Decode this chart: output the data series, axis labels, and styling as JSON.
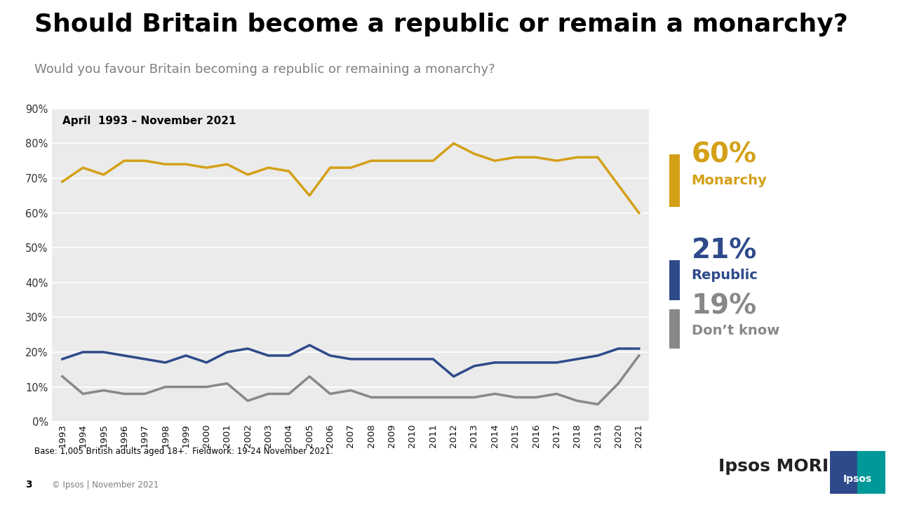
{
  "title": "Should Britain become a republic or remain a monarchy?",
  "subtitle": "Would you favour Britain becoming a republic or remaining a monarchy?",
  "date_range_label": "April  1993 – November 2021",
  "monarchy_color": "#D4A017",
  "republic_color": "#2E4A8A",
  "dontknow_color": "#888888",
  "background_color": "#EBEBEB",
  "legend": [
    {
      "pct": "60%",
      "label": "Monarchy",
      "color": "#D4A017"
    },
    {
      "pct": "21%",
      "label": "Republic",
      "color": "#2E4A8A"
    },
    {
      "pct": "19%",
      "label": "Don’t know",
      "color": "#888888"
    }
  ],
  "base_note": "Base: 1,005 British adults aged 18+.  Fieldwork: 19-24 November 2021.",
  "footer_page": "3",
  "footer_copy": "© Ipsos | November 2021",
  "years": [
    1993,
    1994,
    1995,
    1996,
    1997,
    1998,
    1999,
    2000,
    2001,
    2002,
    2003,
    2004,
    2005,
    2006,
    2007,
    2008,
    2009,
    2010,
    2011,
    2012,
    2013,
    2014,
    2015,
    2016,
    2017,
    2018,
    2019,
    2020,
    2021
  ],
  "monarchy": [
    69,
    73,
    71,
    75,
    75,
    74,
    74,
    73,
    74,
    71,
    73,
    72,
    65,
    73,
    73,
    75,
    75,
    75,
    75,
    80,
    77,
    75,
    76,
    76,
    75,
    76,
    76,
    68,
    60
  ],
  "republic": [
    18,
    20,
    20,
    19,
    18,
    17,
    19,
    17,
    20,
    21,
    19,
    19,
    22,
    19,
    18,
    18,
    18,
    18,
    18,
    13,
    16,
    17,
    17,
    17,
    17,
    18,
    19,
    21,
    21
  ],
  "dontknow": [
    13,
    8,
    9,
    8,
    8,
    10,
    10,
    10,
    11,
    6,
    8,
    8,
    13,
    8,
    9,
    7,
    7,
    7,
    7,
    7,
    7,
    8,
    7,
    7,
    8,
    6,
    5,
    11,
    19
  ]
}
